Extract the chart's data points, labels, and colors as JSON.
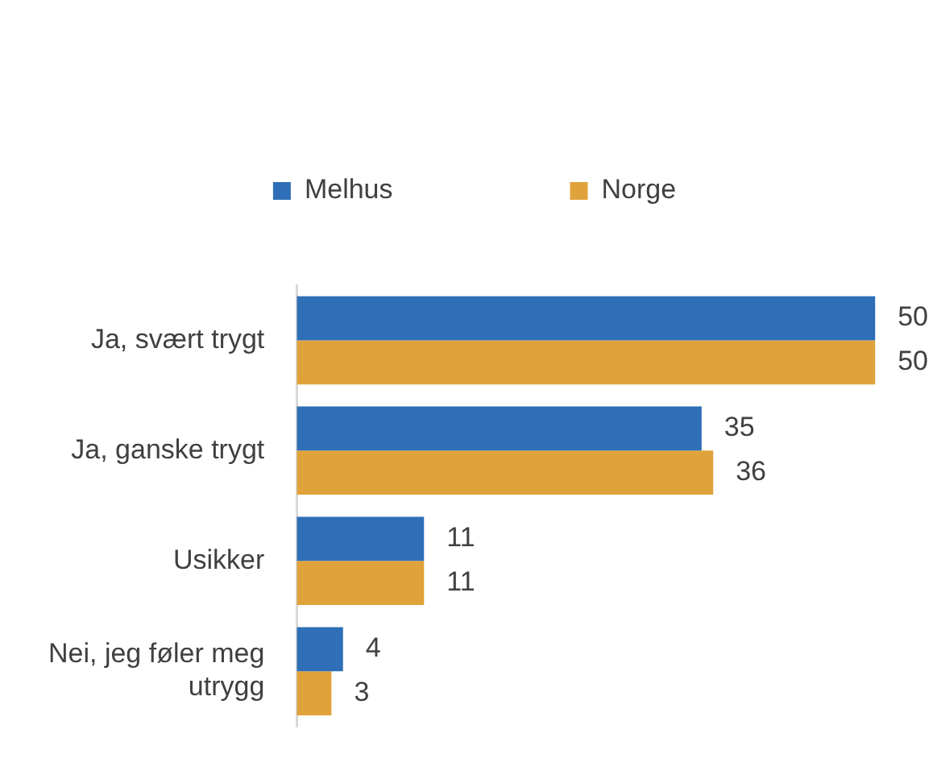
{
  "chart_data": {
    "type": "bar",
    "orientation": "horizontal",
    "categories": [
      "Ja, svært trygt",
      "Ja, ganske trygt",
      "Usikker",
      "Nei, jeg føler meg utrygg"
    ],
    "series": [
      {
        "name": "Melhus",
        "color": "#2e6fb7",
        "values": [
          50,
          35,
          11,
          4
        ]
      },
      {
        "name": "Norge",
        "color": "#e0a23a",
        "values": [
          50,
          36,
          11,
          3
        ]
      }
    ],
    "data_labels": true,
    "legend": "top"
  }
}
